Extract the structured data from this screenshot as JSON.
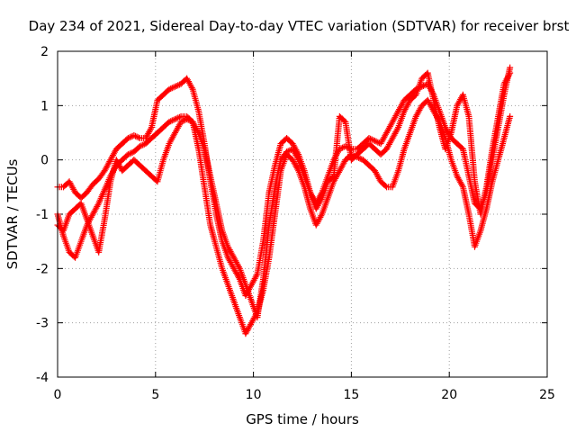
{
  "chart_data": {
    "type": "scatter",
    "title": "Day 234 of 2021, Sidereal Day-to-day VTEC variation (SDTVAR) for receiver brst",
    "xlabel": "GPS time / hours",
    "ylabel": "SDTVAR / TECUs",
    "xlim": [
      0,
      25
    ],
    "ylim": [
      -4,
      2
    ],
    "x_ticks": [
      "0",
      "5",
      "10",
      "15",
      "20",
      "25"
    ],
    "y_ticks": [
      "2",
      "1",
      "0",
      "-1",
      "-2",
      "-3",
      "-4"
    ],
    "grid": true,
    "marker": "+",
    "color": "#ff0000",
    "series": [
      {
        "points": [
          [
            0.0,
            -0.5
          ],
          [
            0.3,
            -0.5
          ],
          [
            0.6,
            -0.4
          ],
          [
            0.9,
            -0.6
          ],
          [
            1.2,
            -0.7
          ],
          [
            1.5,
            -0.6
          ],
          [
            1.8,
            -0.45
          ],
          [
            2.1,
            -0.35
          ],
          [
            2.4,
            -0.2
          ],
          [
            2.7,
            0.0
          ],
          [
            3.0,
            0.2
          ],
          [
            3.3,
            0.3
          ],
          [
            3.6,
            0.4
          ],
          [
            3.9,
            0.45
          ],
          [
            4.2,
            0.4
          ],
          [
            4.5,
            0.4
          ],
          [
            4.8,
            0.6
          ],
          [
            5.1,
            1.1
          ],
          [
            5.4,
            1.2
          ],
          [
            5.7,
            1.3
          ],
          [
            6.0,
            1.35
          ],
          [
            6.3,
            1.4
          ],
          [
            6.6,
            1.5
          ],
          [
            6.9,
            1.3
          ],
          [
            7.2,
            0.9
          ],
          [
            7.5,
            0.3
          ],
          [
            7.8,
            -0.4
          ],
          [
            8.1,
            -1.0
          ],
          [
            8.4,
            -1.5
          ],
          [
            8.7,
            -1.8
          ],
          [
            9.0,
            -2.0
          ],
          [
            9.3,
            -2.2
          ],
          [
            9.6,
            -2.5
          ],
          [
            9.9,
            -2.3
          ],
          [
            10.2,
            -2.1
          ],
          [
            10.5,
            -1.5
          ],
          [
            10.8,
            -0.6
          ],
          [
            11.1,
            -0.1
          ],
          [
            11.4,
            0.3
          ],
          [
            11.7,
            0.4
          ],
          [
            12.0,
            0.3
          ],
          [
            12.3,
            0.1
          ],
          [
            12.6,
            -0.2
          ],
          [
            12.9,
            -0.6
          ],
          [
            13.2,
            -0.8
          ],
          [
            13.5,
            -0.6
          ],
          [
            13.8,
            -0.3
          ],
          [
            14.1,
            0.0
          ],
          [
            14.4,
            0.2
          ],
          [
            14.7,
            0.25
          ],
          [
            15.0,
            0.2
          ],
          [
            15.3,
            0.2
          ],
          [
            15.6,
            0.3
          ],
          [
            15.9,
            0.4
          ],
          [
            16.2,
            0.35
          ],
          [
            16.5,
            0.3
          ],
          [
            16.8,
            0.5
          ],
          [
            17.1,
            0.7
          ],
          [
            17.4,
            0.9
          ],
          [
            17.7,
            1.1
          ],
          [
            18.0,
            1.2
          ],
          [
            18.3,
            1.3
          ],
          [
            18.6,
            1.35
          ],
          [
            18.9,
            1.4
          ],
          [
            19.2,
            1.2
          ],
          [
            19.5,
            0.9
          ],
          [
            19.8,
            0.6
          ],
          [
            20.1,
            0.4
          ],
          [
            20.4,
            0.3
          ],
          [
            20.7,
            0.2
          ],
          [
            21.0,
            -0.3
          ],
          [
            21.3,
            -0.8
          ],
          [
            21.6,
            -0.9
          ],
          [
            21.9,
            -0.6
          ],
          [
            22.2,
            0.0
          ],
          [
            22.5,
            0.6
          ],
          [
            22.8,
            1.2
          ],
          [
            23.1,
            1.7
          ]
        ]
      },
      {
        "points": [
          [
            0.0,
            -1.0
          ],
          [
            0.3,
            -1.4
          ],
          [
            0.6,
            -1.7
          ],
          [
            0.9,
            -1.8
          ],
          [
            1.2,
            -1.5
          ],
          [
            1.5,
            -1.2
          ],
          [
            1.8,
            -1.0
          ],
          [
            2.1,
            -0.8
          ],
          [
            2.4,
            -0.55
          ],
          [
            2.7,
            -0.3
          ],
          [
            3.0,
            -0.1
          ],
          [
            3.3,
            0.0
          ],
          [
            3.6,
            0.1
          ],
          [
            3.9,
            0.15
          ],
          [
            4.2,
            0.25
          ],
          [
            4.5,
            0.3
          ],
          [
            4.8,
            0.4
          ],
          [
            5.1,
            0.5
          ],
          [
            5.4,
            0.6
          ],
          [
            5.7,
            0.7
          ],
          [
            6.0,
            0.75
          ],
          [
            6.3,
            0.8
          ],
          [
            6.6,
            0.8
          ],
          [
            6.9,
            0.7
          ],
          [
            7.2,
            0.2
          ],
          [
            7.5,
            -0.5
          ],
          [
            7.8,
            -1.2
          ],
          [
            8.1,
            -1.6
          ],
          [
            8.4,
            -2.0
          ],
          [
            8.7,
            -2.3
          ],
          [
            9.0,
            -2.6
          ],
          [
            9.3,
            -2.9
          ],
          [
            9.6,
            -3.2
          ],
          [
            9.9,
            -3.0
          ],
          [
            10.2,
            -2.8
          ],
          [
            10.5,
            -2.4
          ],
          [
            10.8,
            -1.8
          ],
          [
            11.1,
            -1.0
          ],
          [
            11.4,
            -0.2
          ],
          [
            11.7,
            0.1
          ],
          [
            12.0,
            0.0
          ],
          [
            12.3,
            -0.2
          ],
          [
            12.6,
            -0.5
          ],
          [
            12.9,
            -0.9
          ],
          [
            13.2,
            -1.2
          ],
          [
            13.5,
            -1.0
          ],
          [
            13.8,
            -0.7
          ],
          [
            14.1,
            -0.4
          ],
          [
            14.4,
            -0.2
          ],
          [
            14.7,
            0.0
          ],
          [
            15.0,
            0.1
          ],
          [
            15.3,
            0.05
          ],
          [
            15.6,
            0.0
          ],
          [
            15.9,
            -0.1
          ],
          [
            16.2,
            -0.2
          ],
          [
            16.5,
            -0.4
          ],
          [
            16.8,
            -0.5
          ],
          [
            17.1,
            -0.5
          ],
          [
            17.4,
            -0.2
          ],
          [
            17.7,
            0.2
          ],
          [
            18.0,
            0.5
          ],
          [
            18.3,
            0.8
          ],
          [
            18.6,
            1.0
          ],
          [
            18.9,
            1.1
          ],
          [
            19.2,
            0.9
          ],
          [
            19.5,
            0.7
          ],
          [
            19.8,
            0.4
          ],
          [
            20.1,
            0.0
          ],
          [
            20.4,
            -0.3
          ],
          [
            20.7,
            -0.5
          ],
          [
            21.0,
            -1.0
          ],
          [
            21.3,
            -1.6
          ],
          [
            21.6,
            -1.3
          ],
          [
            21.9,
            -0.9
          ],
          [
            22.2,
            -0.4
          ],
          [
            22.5,
            0.0
          ],
          [
            22.8,
            0.4
          ],
          [
            23.1,
            0.8
          ]
        ]
      },
      {
        "points": [
          [
            0.0,
            -1.2
          ],
          [
            0.3,
            -1.3
          ],
          [
            0.6,
            -1.0
          ],
          [
            0.9,
            -0.9
          ],
          [
            1.2,
            -0.8
          ],
          [
            1.5,
            -1.1
          ],
          [
            1.8,
            -1.4
          ],
          [
            2.1,
            -1.7
          ],
          [
            2.4,
            -1.1
          ],
          [
            2.7,
            -0.4
          ],
          [
            3.0,
            0.0
          ],
          [
            3.3,
            -0.2
          ],
          [
            3.6,
            -0.1
          ],
          [
            3.9,
            0.0
          ],
          [
            4.2,
            -0.1
          ],
          [
            4.5,
            -0.2
          ],
          [
            4.8,
            -0.3
          ],
          [
            5.1,
            -0.4
          ],
          [
            5.4,
            0.0
          ],
          [
            5.7,
            0.3
          ],
          [
            6.0,
            0.5
          ],
          [
            6.3,
            0.7
          ],
          [
            6.6,
            0.75
          ],
          [
            6.9,
            0.7
          ],
          [
            7.2,
            0.5
          ],
          [
            7.5,
            0.2
          ],
          [
            7.8,
            -0.3
          ],
          [
            8.1,
            -0.8
          ],
          [
            8.4,
            -1.3
          ],
          [
            8.7,
            -1.6
          ],
          [
            9.0,
            -1.8
          ],
          [
            9.3,
            -2.0
          ],
          [
            9.6,
            -2.3
          ],
          [
            9.9,
            -2.6
          ],
          [
            10.2,
            -2.9
          ],
          [
            10.5,
            -2.2
          ],
          [
            10.8,
            -1.2
          ],
          [
            11.1,
            -0.5
          ],
          [
            11.4,
            0.0
          ],
          [
            11.7,
            0.15
          ],
          [
            12.0,
            0.2
          ],
          [
            12.3,
            0.0
          ],
          [
            12.6,
            -0.3
          ],
          [
            12.9,
            -0.6
          ],
          [
            13.2,
            -0.9
          ],
          [
            13.5,
            -0.7
          ],
          [
            13.8,
            -0.4
          ],
          [
            14.1,
            -0.3
          ],
          [
            14.4,
            0.8
          ],
          [
            14.7,
            0.7
          ],
          [
            15.0,
            0.0
          ],
          [
            15.3,
            0.1
          ],
          [
            15.6,
            0.2
          ],
          [
            15.9,
            0.3
          ],
          [
            16.2,
            0.2
          ],
          [
            16.5,
            0.1
          ],
          [
            16.8,
            0.2
          ],
          [
            17.1,
            0.4
          ],
          [
            17.4,
            0.6
          ],
          [
            17.7,
            0.9
          ],
          [
            18.0,
            1.1
          ],
          [
            18.3,
            1.2
          ],
          [
            18.6,
            1.5
          ],
          [
            18.9,
            1.6
          ],
          [
            19.2,
            1.1
          ],
          [
            19.5,
            0.6
          ],
          [
            19.8,
            0.2
          ],
          [
            20.1,
            0.5
          ],
          [
            20.4,
            1.0
          ],
          [
            20.7,
            1.2
          ],
          [
            21.0,
            0.8
          ],
          [
            21.3,
            -0.4
          ],
          [
            21.6,
            -1.0
          ],
          [
            21.9,
            -0.5
          ],
          [
            22.2,
            0.2
          ],
          [
            22.5,
            0.8
          ],
          [
            22.8,
            1.4
          ],
          [
            23.1,
            1.6
          ]
        ]
      }
    ]
  }
}
